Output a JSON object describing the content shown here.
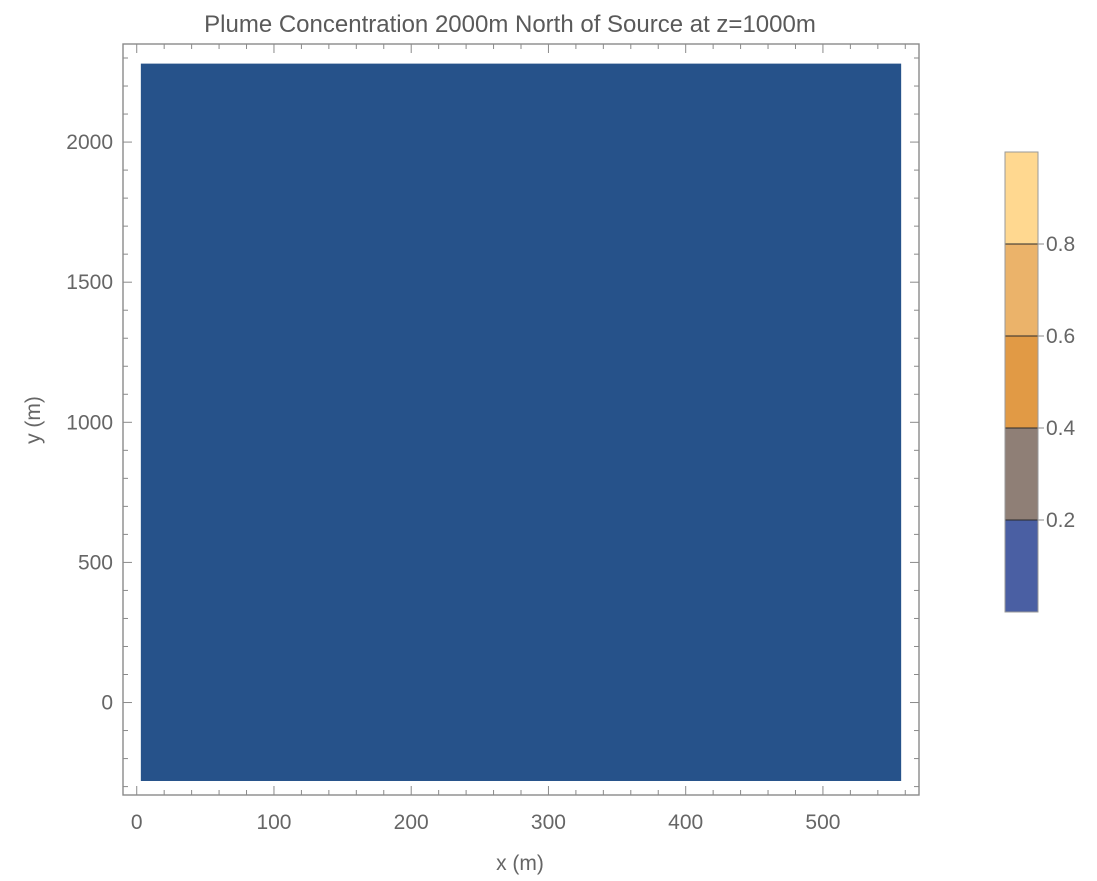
{
  "chart_data": {
    "type": "heatmap",
    "title": "Plume Concentration 2000m North of Source at z=1000m",
    "xlabel": "x (m)",
    "ylabel": "y (m)",
    "xlim": [
      -10,
      570
    ],
    "ylim": [
      -330,
      2350
    ],
    "x_ticks": [
      0,
      100,
      200,
      300,
      400,
      500
    ],
    "y_ticks": [
      0,
      500,
      1000,
      1500,
      2000
    ],
    "data_extent": {
      "x": [
        3,
        557
      ],
      "y": [
        -280,
        2280
      ]
    },
    "fill_value_band": [
      0.0,
      0.2
    ],
    "grid": false,
    "colorbar": {
      "placement": "right",
      "levels": [
        0.0,
        0.2,
        0.4,
        0.6,
        0.8,
        1.0
      ],
      "tick_labels": [
        "0.2",
        "0.4",
        "0.6",
        "0.8"
      ],
      "tick_values": [
        0.2,
        0.4,
        0.6,
        0.8
      ],
      "band_colors": [
        "#4a5fa3",
        "#8f7f76",
        "#e19a45",
        "#ebb36a",
        "#ffd890"
      ]
    },
    "colors": {
      "fill": "#26528a",
      "frame": "#888888",
      "text": "#666666"
    }
  }
}
